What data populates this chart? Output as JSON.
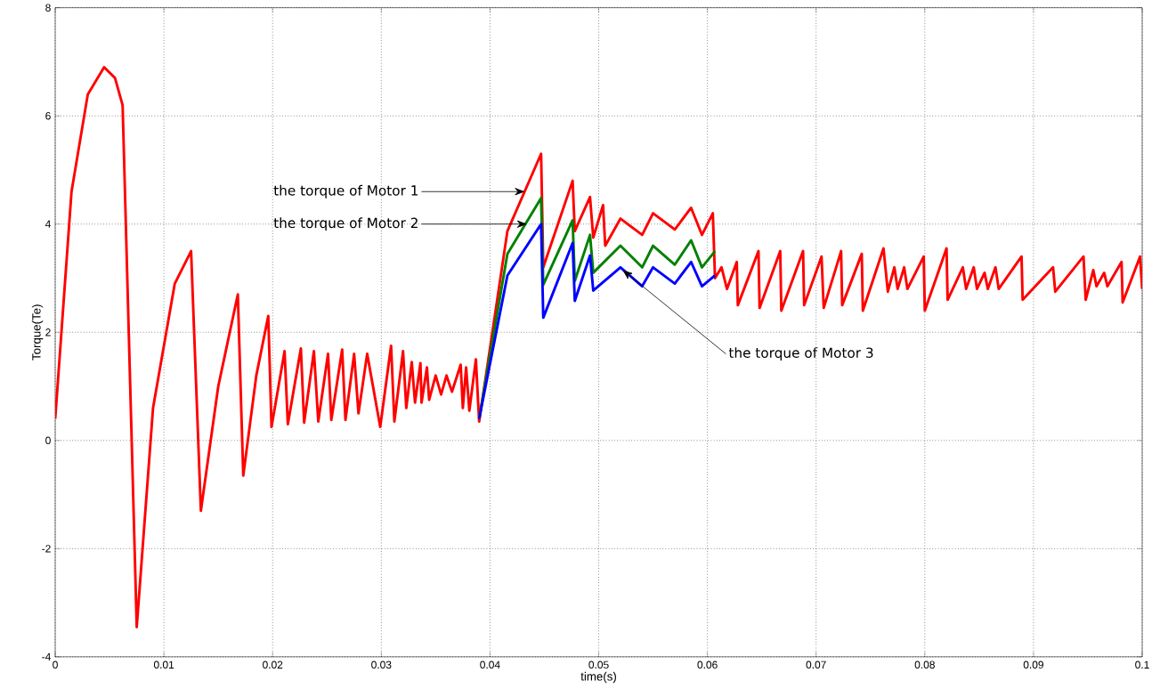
{
  "chart_data": {
    "type": "line",
    "xlabel": "time(s)",
    "ylabel": "Torque(Te)",
    "xlim": [
      0,
      0.1
    ],
    "ylim": [
      -4,
      8
    ],
    "xticks": [
      0,
      0.01,
      0.02,
      0.03,
      0.04,
      0.05,
      0.06,
      0.07,
      0.08,
      0.09,
      0.1
    ],
    "yticks": [
      -4,
      -2,
      0,
      2,
      4,
      6,
      8
    ],
    "grid": true,
    "series": [
      {
        "color": "#ff0000",
        "x": [
          0,
          0.0015,
          0.003,
          0.0045,
          0.0055,
          0.0062,
          0.0075,
          0.009,
          0.011,
          0.0125,
          0.0134,
          0.015,
          0.0168,
          0.0173,
          0.0185,
          0.0196,
          0.0199,
          0.0211,
          0.0214,
          0.0226,
          0.0229,
          0.0238,
          0.0242,
          0.0251,
          0.0254,
          0.0264,
          0.0267,
          0.0275,
          0.0279,
          0.0287,
          0.0299,
          0.0309,
          0.0312,
          0.032,
          0.0323,
          0.0328,
          0.0331,
          0.0336,
          0.0337,
          0.0342,
          0.0344,
          0.035,
          0.0355,
          0.036,
          0.0365,
          0.0373,
          0.0375,
          0.0378,
          0.0381,
          0.0387,
          0.039,
          0.0416,
          0.0447,
          0.0449,
          0.0476,
          0.0478,
          0.0492,
          0.0495,
          0.0504,
          0.0506,
          0.052,
          0.054,
          0.055,
          0.057,
          0.0585,
          0.0595,
          0.0605,
          0.0607,
          0.0613,
          0.0618,
          0.0627,
          0.0628,
          0.0647,
          0.0648,
          0.0667,
          0.0668,
          0.0688,
          0.0689,
          0.0705,
          0.0707,
          0.0723,
          0.0724,
          0.0742,
          0.0743,
          0.0762,
          0.0766,
          0.0772,
          0.0775,
          0.0781,
          0.0784,
          0.0799,
          0.08,
          0.082,
          0.0821,
          0.0835,
          0.0838,
          0.0845,
          0.0848,
          0.0855,
          0.0858,
          0.0865,
          0.0868,
          0.0889,
          0.089,
          0.0918,
          0.092,
          0.0946,
          0.0948,
          0.0955,
          0.0958,
          0.0965,
          0.0968,
          0.0981,
          0.0982,
          0.0998,
          0.1
        ],
        "values": [
          0.4,
          4.6,
          6.4,
          6.9,
          6.7,
          6.2,
          -3.45,
          0.6,
          2.9,
          3.5,
          -1.3,
          1.0,
          2.7,
          -0.65,
          1.2,
          2.3,
          0.25,
          1.65,
          0.3,
          1.7,
          0.33,
          1.65,
          0.35,
          1.6,
          0.38,
          1.68,
          0.38,
          1.6,
          0.5,
          1.6,
          0.25,
          1.75,
          0.35,
          1.65,
          0.6,
          1.45,
          0.7,
          1.43,
          0.7,
          1.35,
          0.75,
          1.2,
          0.85,
          1.2,
          0.9,
          1.4,
          0.6,
          1.35,
          0.55,
          1.5,
          0.35,
          3.87,
          5.3,
          3.2,
          4.8,
          3.87,
          4.5,
          3.75,
          4.35,
          3.6,
          4.1,
          3.8,
          4.2,
          3.9,
          4.3,
          3.8,
          4.2,
          3.0,
          3.2,
          2.8,
          3.3,
          2.5,
          3.5,
          2.45,
          3.5,
          2.4,
          3.5,
          2.5,
          3.4,
          2.45,
          3.5,
          2.5,
          3.45,
          2.4,
          3.55,
          2.75,
          3.2,
          2.8,
          3.2,
          2.8,
          3.4,
          2.4,
          3.55,
          2.6,
          3.2,
          2.8,
          3.2,
          2.8,
          3.1,
          2.8,
          3.2,
          2.8,
          3.4,
          2.6,
          3.2,
          2.75,
          3.4,
          2.6,
          3.15,
          2.85,
          3.1,
          2.85,
          3.3,
          2.55,
          3.4,
          2.8
        ]
      },
      {
        "color": "#008000",
        "x": [
          0.039,
          0.0416,
          0.0447,
          0.0449,
          0.0476,
          0.0478,
          0.0492,
          0.0495,
          0.052,
          0.054,
          0.055,
          0.057,
          0.0585,
          0.0595,
          0.0607
        ],
        "values": [
          0.4,
          3.45,
          4.48,
          2.88,
          4.07,
          2.95,
          3.8,
          3.1,
          3.6,
          3.2,
          3.6,
          3.25,
          3.7,
          3.2,
          3.5
        ]
      },
      {
        "color": "#0000ff",
        "x": [
          0.039,
          0.0416,
          0.0447,
          0.0449,
          0.0476,
          0.0478,
          0.0492,
          0.0495,
          0.052,
          0.054,
          0.055,
          0.057,
          0.0585,
          0.0595,
          0.0607
        ],
        "values": [
          0.4,
          3.05,
          4.0,
          2.27,
          3.65,
          2.58,
          3.42,
          2.77,
          3.2,
          2.85,
          3.2,
          2.9,
          3.3,
          2.85,
          3.05
        ]
      }
    ],
    "annotations": [
      {
        "text": "the torque of Motor 1",
        "x": 0.0432,
        "y": 4.6
      },
      {
        "text": "the torque of Motor 2",
        "x": 0.0434,
        "y": 4.0
      },
      {
        "text": "the torque of Motor 3",
        "x": 0.0522,
        "y": 3.15
      }
    ]
  }
}
